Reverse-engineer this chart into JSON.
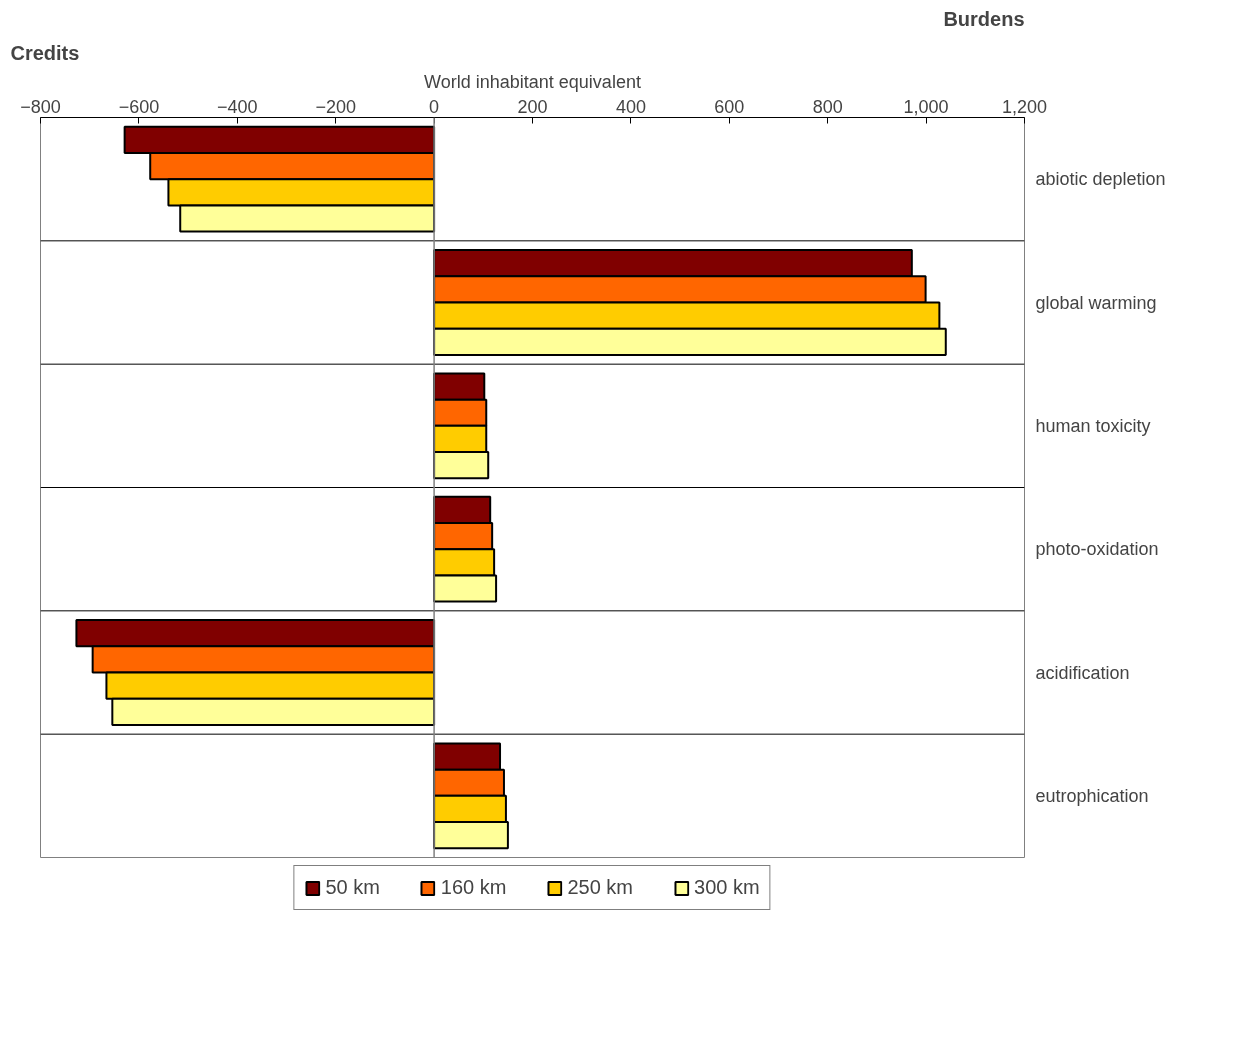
{
  "chart_data": {
    "type": "bar",
    "orientation": "horizontal",
    "xlabel": "World inhabitant equivalent",
    "categories": [
      "abiotic depletion",
      "global warming",
      "human toxicity",
      "photo-oxidation",
      "acidification",
      "eutrophication"
    ],
    "series": [
      {
        "name": "50 km",
        "color": "#800000",
        "values": [
          -629,
          971,
          102,
          114,
          -727,
          134
        ]
      },
      {
        "name": "160 km",
        "color": "#ff6600",
        "values": [
          -577,
          999,
          106,
          118,
          -694,
          142
        ]
      },
      {
        "name": "250 km",
        "color": "#ffcc00",
        "values": [
          -540,
          1027,
          106,
          122,
          -666,
          146
        ]
      },
      {
        "name": "300 km",
        "color": "#ffff99",
        "values": [
          -516,
          1040,
          110,
          126,
          -654,
          150
        ]
      }
    ],
    "xlim": [
      -800,
      1200
    ],
    "xticks": [
      -800,
      -600,
      -400,
      -200,
      0,
      200,
      400,
      600,
      800,
      {
        "value": 1000,
        "label": "1,000"
      },
      {
        "value": 1200,
        "label": "1,200"
      }
    ],
    "ref_lines": [
      {
        "axis": "x",
        "value": 0,
        "color": "#808080"
      }
    ],
    "annotations": [
      "Credits",
      "Burdens"
    ],
    "legend": "bottom",
    "grid": false
  }
}
